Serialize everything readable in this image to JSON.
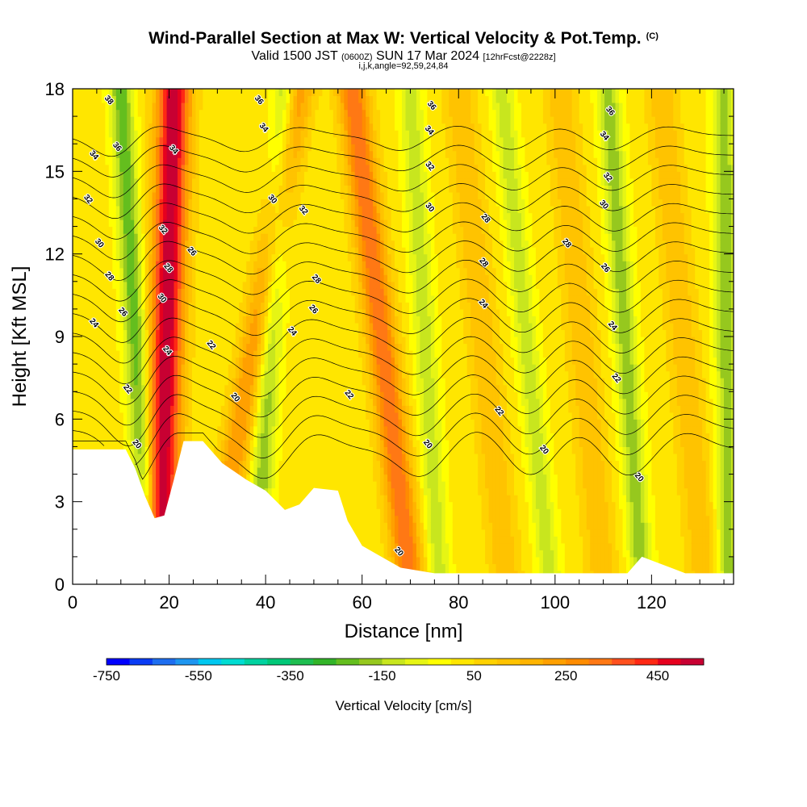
{
  "header": {
    "title": "Wind-Parallel Section at Max W: Vertical Velocity & Pot.Temp.",
    "copyright": "(C)",
    "valid_prefix": "Valid 1500 JST",
    "valid_utc": "(0600Z)",
    "valid_date": "SUN 17 Mar 2024",
    "forecast": "[12hrFcst@2228z]",
    "indices": "i,j,k,angle=92,59,24,84"
  },
  "chart_data": {
    "type": "heatmap",
    "title": "Wind-Parallel Section at Max W: Vertical Velocity & Pot.Temp.",
    "xlabel": "Distance [nm]",
    "ylabel": "Height [Kft MSL]",
    "xlim": [
      0,
      137
    ],
    "ylim": [
      0,
      18
    ],
    "x_ticks": [
      0,
      20,
      40,
      60,
      80,
      100,
      120
    ],
    "y_ticks": [
      0,
      3,
      6,
      9,
      12,
      15,
      18
    ],
    "colorbar": {
      "label": "Vertical Velocity [cm/s]",
      "min": -750,
      "max": 550,
      "step": 50,
      "tick_labels": [
        "-750",
        "-550",
        "-350",
        "-150",
        "50",
        "250",
        "450"
      ],
      "tick_values": [
        -750,
        -550,
        -350,
        -150,
        50,
        250,
        450
      ],
      "colors": [
        "#0000ff",
        "#0a3cf5",
        "#1e6ef0",
        "#1e96f0",
        "#00c8f0",
        "#00dcd2",
        "#00d2a0",
        "#00c878",
        "#1ebe50",
        "#32b428",
        "#64be1e",
        "#96c81e",
        "#c8e61e",
        "#e6f514",
        "#ffff00",
        "#ffe600",
        "#ffd200",
        "#ffc300",
        "#ffb400",
        "#ffa000",
        "#ff8c00",
        "#ff7814",
        "#ff501e",
        "#ff2814",
        "#e6001e",
        "#c80032",
        "#a0004b",
        "#7d0064",
        "#5a007d",
        "#46008c"
      ]
    },
    "terrain_kft": [
      [
        0,
        4.9
      ],
      [
        11,
        4.9
      ],
      [
        13,
        4.2
      ],
      [
        15,
        3.2
      ],
      [
        17,
        2.4
      ],
      [
        19,
        2.5
      ],
      [
        21,
        3.8
      ],
      [
        23,
        5.2
      ],
      [
        27,
        5.2
      ],
      [
        31,
        4.4
      ],
      [
        36,
        3.8
      ],
      [
        40,
        3.4
      ],
      [
        44,
        2.7
      ],
      [
        47,
        2.9
      ],
      [
        50,
        3.5
      ],
      [
        55,
        3.4
      ],
      [
        57,
        2.3
      ],
      [
        60,
        1.4
      ],
      [
        63,
        1.1
      ],
      [
        68,
        0.6
      ],
      [
        75,
        0.4
      ],
      [
        115,
        0.4
      ],
      [
        118,
        1.0
      ],
      [
        121,
        0.8
      ],
      [
        124,
        0.6
      ],
      [
        127,
        0.4
      ],
      [
        137,
        0.4
      ]
    ],
    "updraft_axes": [
      {
        "x_base": 18,
        "x_top": 21,
        "peak_cm_s": 550
      },
      {
        "x_base": 29,
        "x_top": 47,
        "peak_cm_s": 250
      },
      {
        "x_base": 70,
        "x_top": 58,
        "peak_cm_s": 350
      },
      {
        "x_base": 90,
        "x_top": 80,
        "peak_cm_s": 150
      },
      {
        "x_base": 110,
        "x_top": 101,
        "peak_cm_s": 150
      },
      {
        "x_base": 131,
        "x_top": 122,
        "peak_cm_s": 150
      }
    ],
    "downdraft_axes": [
      {
        "x_base": 16,
        "x_top": 10,
        "peak_cm_s": -250
      },
      {
        "x_base": 38,
        "x_top": 44,
        "peak_cm_s": -200
      },
      {
        "x_base": 76,
        "x_top": 70,
        "peak_cm_s": -150
      },
      {
        "x_base": 99,
        "x_top": 89,
        "peak_cm_s": -150
      },
      {
        "x_base": 118,
        "x_top": 111,
        "peak_cm_s": -200
      },
      {
        "x_base": 136,
        "x_top": 135,
        "peak_cm_s": -200
      }
    ],
    "theta_levels": [
      20,
      21,
      22,
      23,
      24,
      25,
      26,
      27,
      28,
      29,
      30,
      31,
      32,
      33,
      34,
      35,
      36
    ],
    "theta_labels": [
      {
        "text": "20",
        "x": 13.4,
        "y": 5.1
      },
      {
        "text": "22",
        "x": 11.5,
        "y": 7.1
      },
      {
        "text": "24",
        "x": 4.5,
        "y": 9.5
      },
      {
        "text": "26",
        "x": 10.5,
        "y": 9.9
      },
      {
        "text": "28",
        "x": 7.7,
        "y": 11.2
      },
      {
        "text": "30",
        "x": 5.6,
        "y": 12.4
      },
      {
        "text": "32",
        "x": 3.3,
        "y": 14.0
      },
      {
        "text": "34",
        "x": 4.5,
        "y": 15.6
      },
      {
        "text": "36",
        "x": 9.3,
        "y": 15.9
      },
      {
        "text": "38",
        "x": 7.6,
        "y": 17.6
      },
      {
        "text": "24",
        "x": 19.7,
        "y": 8.5
      },
      {
        "text": "30",
        "x": 18.6,
        "y": 10.4
      },
      {
        "text": "28",
        "x": 19.9,
        "y": 11.5
      },
      {
        "text": "32",
        "x": 18.8,
        "y": 12.9
      },
      {
        "text": "34",
        "x": 21.0,
        "y": 15.8
      },
      {
        "text": "22",
        "x": 28.8,
        "y": 8.7
      },
      {
        "text": "26",
        "x": 24.8,
        "y": 12.1
      },
      {
        "text": "20",
        "x": 33.8,
        "y": 6.8
      },
      {
        "text": "24",
        "x": 45.6,
        "y": 9.2
      },
      {
        "text": "26",
        "x": 50.0,
        "y": 10.0
      },
      {
        "text": "28",
        "x": 50.6,
        "y": 11.1
      },
      {
        "text": "30",
        "x": 41.5,
        "y": 14.0
      },
      {
        "text": "32",
        "x": 47.9,
        "y": 13.6
      },
      {
        "text": "34",
        "x": 39.7,
        "y": 16.6
      },
      {
        "text": "36",
        "x": 38.7,
        "y": 17.6
      },
      {
        "text": "22",
        "x": 57.4,
        "y": 6.9
      },
      {
        "text": "20",
        "x": 67.7,
        "y": 1.2
      },
      {
        "text": "20",
        "x": 73.7,
        "y": 5.1
      },
      {
        "text": "24",
        "x": 85.2,
        "y": 10.2
      },
      {
        "text": "28",
        "x": 85.3,
        "y": 11.7
      },
      {
        "text": "28",
        "x": 85.7,
        "y": 13.3
      },
      {
        "text": "30",
        "x": 74.1,
        "y": 13.7
      },
      {
        "text": "32",
        "x": 74.1,
        "y": 15.2
      },
      {
        "text": "34",
        "x": 74.0,
        "y": 16.5
      },
      {
        "text": "36",
        "x": 74.5,
        "y": 17.4
      },
      {
        "text": "22",
        "x": 88.5,
        "y": 6.3
      },
      {
        "text": "20",
        "x": 97.8,
        "y": 4.9
      },
      {
        "text": "28",
        "x": 102.5,
        "y": 12.4
      },
      {
        "text": "26",
        "x": 110.5,
        "y": 11.5
      },
      {
        "text": "24",
        "x": 112.0,
        "y": 9.4
      },
      {
        "text": "22",
        "x": 112.8,
        "y": 7.5
      },
      {
        "text": "20",
        "x": 117.5,
        "y": 3.9
      },
      {
        "text": "30",
        "x": 110.2,
        "y": 13.8
      },
      {
        "text": "32",
        "x": 111.0,
        "y": 14.8
      },
      {
        "text": "34",
        "x": 110.3,
        "y": 16.3
      },
      {
        "text": "36",
        "x": 111.5,
        "y": 17.2
      }
    ]
  }
}
